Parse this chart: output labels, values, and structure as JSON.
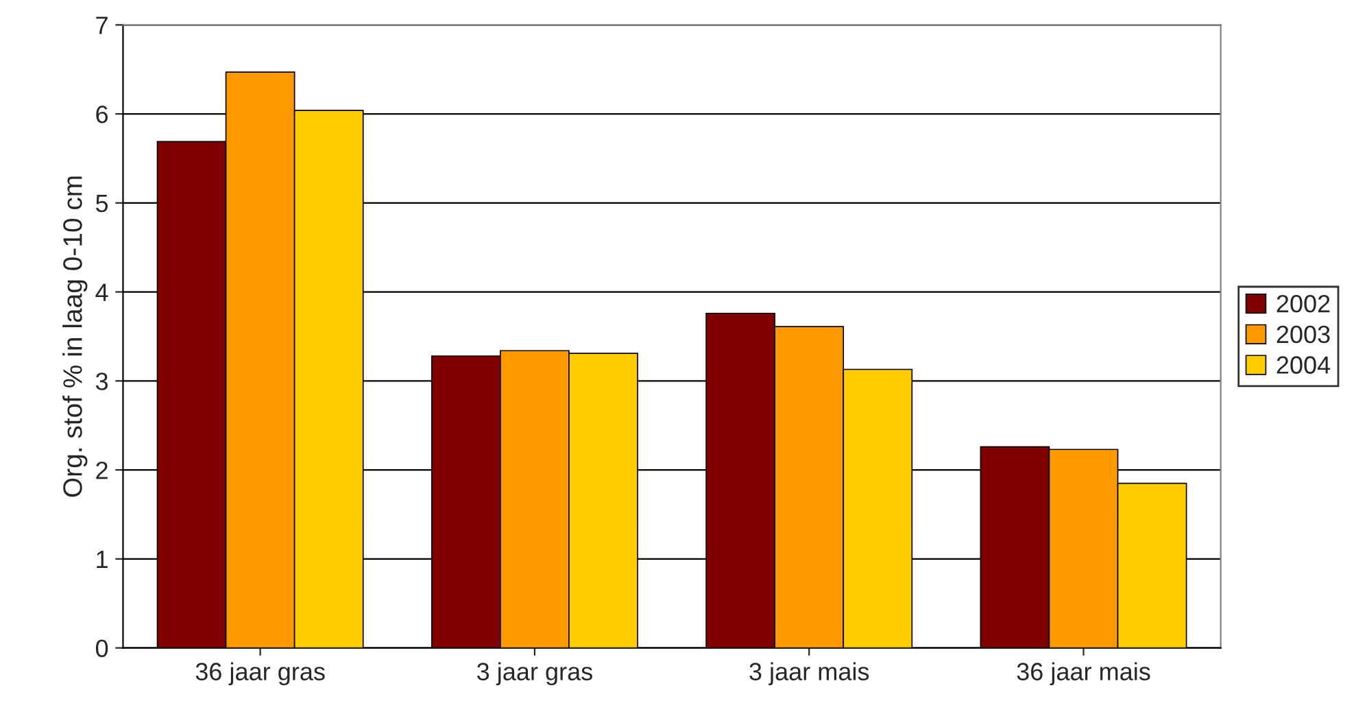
{
  "chart_data": {
    "type": "bar",
    "ylabel": "Org. stof % in laag 0-10 cm",
    "categories": [
      "36 jaar gras",
      "3 jaar gras",
      "3 jaar mais",
      "36 jaar mais"
    ],
    "series": [
      {
        "name": "2002",
        "color": "#800000",
        "values": [
          5.69,
          3.28,
          3.76,
          2.26
        ]
      },
      {
        "name": "2003",
        "color": "#ff9900",
        "values": [
          6.47,
          3.34,
          3.61,
          2.23
        ]
      },
      {
        "name": "2004",
        "color": "#ffcc00",
        "values": [
          6.04,
          3.31,
          3.13,
          1.85
        ]
      }
    ],
    "ylim": [
      0,
      7
    ],
    "yticks": [
      0,
      1,
      2,
      3,
      4,
      5,
      6,
      7
    ],
    "grid": "y",
    "legend": "right"
  }
}
